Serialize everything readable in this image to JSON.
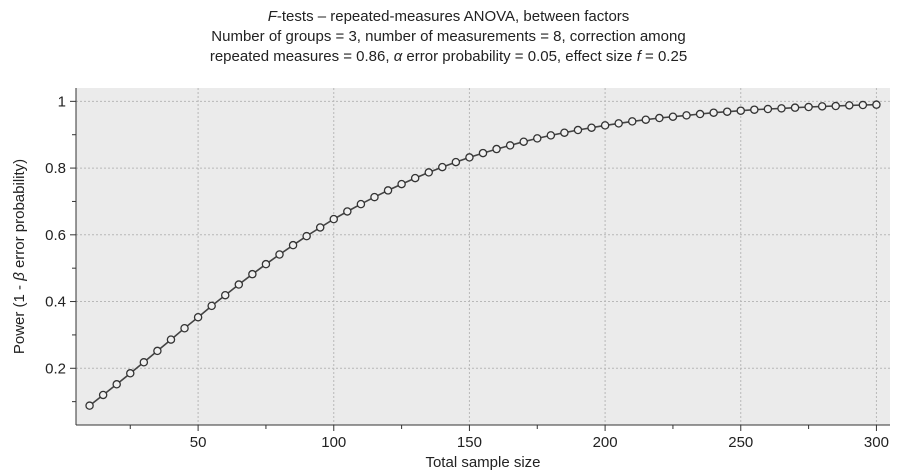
{
  "chart_data": {
    "type": "line",
    "title_line1_italic": "F",
    "title_line1_rest": "-tests – repeated-measures ANOVA, between factors",
    "title_line2": "Number of groups = 3, number of measurements = 8, correction among",
    "title_line3_a": "repeated measures = 0.86, ",
    "title_line3_alpha": "α",
    "title_line3_b": " error probability = 0.05, effect size ",
    "title_line3_f": "f",
    "title_line3_c": " = 0.25",
    "xlabel": "Total sample size",
    "ylabel_a": "Power (1 - ",
    "ylabel_beta": "β",
    "ylabel_b": " error probability)",
    "xlim": [
      5,
      305
    ],
    "ylim": [
      0.03,
      1.04
    ],
    "x_ticks": [
      50,
      100,
      150,
      200,
      250,
      300
    ],
    "x_tick_labels": [
      "50",
      "100",
      "150",
      "200",
      "250",
      "300"
    ],
    "y_ticks": [
      0.2,
      0.4,
      0.6,
      0.8,
      1.0
    ],
    "y_tick_labels": [
      "0.2",
      "0.4",
      "0.6",
      "0.8",
      "1"
    ],
    "grid": true,
    "series": [
      {
        "x": [
          10,
          15,
          20,
          25,
          30,
          35,
          40,
          45,
          50,
          55,
          60,
          65,
          70,
          75,
          80,
          85,
          90,
          95,
          100,
          105,
          110,
          115,
          120,
          125,
          130,
          135,
          140,
          145,
          150,
          155,
          160,
          165,
          170,
          175,
          180,
          185,
          190,
          195,
          200,
          205,
          210,
          215,
          220,
          225,
          230,
          235,
          240,
          245,
          250,
          255,
          260,
          265,
          270,
          275,
          280,
          285,
          290,
          295,
          300
        ],
        "y": [
          0.088,
          0.12,
          0.152,
          0.185,
          0.218,
          0.252,
          0.286,
          0.32,
          0.353,
          0.387,
          0.419,
          0.451,
          0.482,
          0.512,
          0.541,
          0.569,
          0.596,
          0.622,
          0.647,
          0.67,
          0.692,
          0.713,
          0.733,
          0.752,
          0.77,
          0.787,
          0.803,
          0.818,
          0.832,
          0.845,
          0.857,
          0.868,
          0.879,
          0.889,
          0.898,
          0.906,
          0.914,
          0.921,
          0.928,
          0.934,
          0.94,
          0.945,
          0.95,
          0.954,
          0.958,
          0.962,
          0.966,
          0.969,
          0.972,
          0.975,
          0.977,
          0.979,
          0.981,
          0.983,
          0.985,
          0.986,
          0.988,
          0.989,
          0.99
        ]
      }
    ]
  }
}
